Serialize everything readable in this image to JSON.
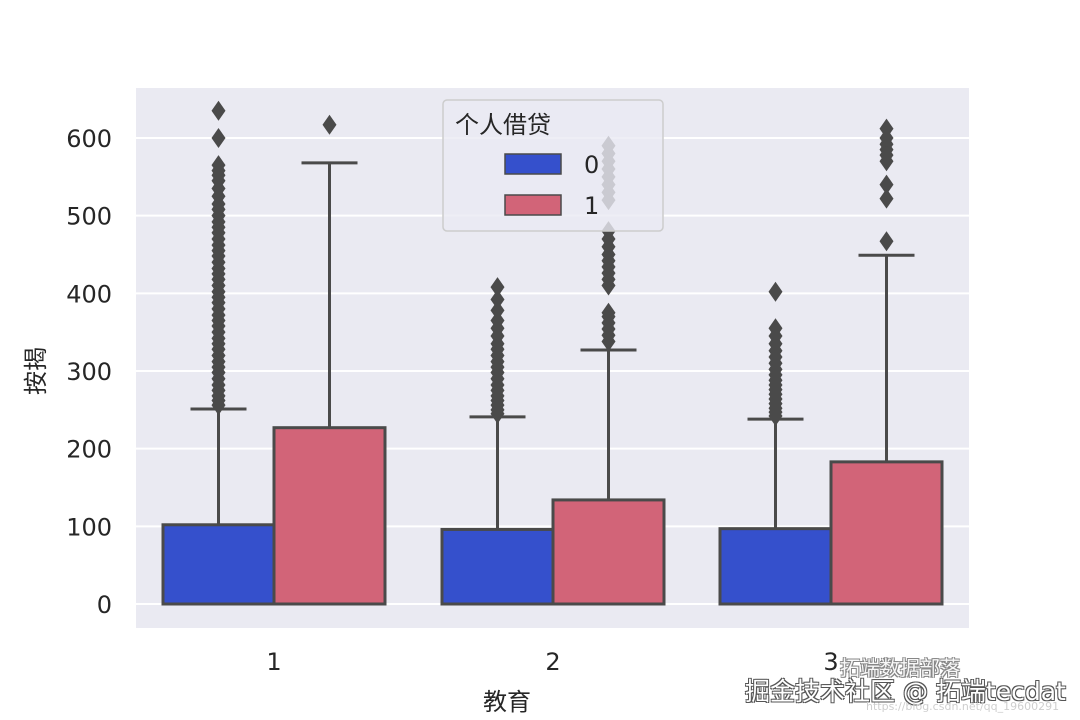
{
  "chart_data": {
    "type": "box",
    "title": "",
    "xlabel": "教育",
    "ylabel": "按揭",
    "categories": [
      "1",
      "2",
      "3"
    ],
    "hue_title": "个人借贷",
    "ylim": [
      -30,
      665
    ],
    "yticks": [
      0,
      100,
      200,
      300,
      400,
      500,
      600
    ],
    "grid": true,
    "legend_position": "upper center",
    "series": [
      {
        "name": "0",
        "color": "#3550cc",
        "boxes": [
          {
            "category": "1",
            "q1": 0,
            "median": 0,
            "q3": 102,
            "whisker_low": 0,
            "whisker_high": 251,
            "outliers": [
              256,
              262,
              268,
              275,
              282,
              290,
              298,
              305,
              312,
              320,
              328,
              335,
              342,
              350,
              358,
              365,
              372,
              380,
              388,
              395,
              402,
              410,
              418,
              425,
              432,
              440,
              448,
              455,
              462,
              470,
              478,
              485,
              492,
              500,
              508,
              515,
              525,
              535,
              545,
              552,
              558,
              565,
              600,
              635
            ]
          },
          {
            "category": "2",
            "q1": 0,
            "median": 0,
            "q3": 96,
            "whisker_low": 0,
            "whisker_high": 241,
            "outliers": [
              245,
              250,
              256,
              262,
              268,
              275,
              282,
              290,
              298,
              305,
              312,
              320,
              328,
              335,
              345,
              355,
              365,
              378,
              392,
              408
            ]
          },
          {
            "category": "3",
            "q1": 0,
            "median": 0,
            "q3": 97,
            "whisker_low": 0,
            "whisker_high": 238,
            "outliers": [
              242,
              247,
              252,
              258,
              264,
              270,
              276,
              282,
              288,
              295,
              302,
              310,
              318,
              326,
              335,
              345,
              355,
              402
            ]
          }
        ]
      },
      {
        "name": "1",
        "color": "#d26478",
        "boxes": [
          {
            "category": "1",
            "q1": 0,
            "median": 0,
            "q3": 227,
            "whisker_low": 0,
            "whisker_high": 568,
            "outliers": [
              617
            ]
          },
          {
            "category": "2",
            "q1": 0,
            "median": 0,
            "q3": 134,
            "whisker_low": 0,
            "whisker_high": 327,
            "outliers": [
              338,
              346,
              354,
              362,
              370,
              375,
              410,
              418,
              426,
              434,
              442,
              450,
              460,
              470,
              480,
              520,
              530,
              540,
              550,
              560,
              570,
              580,
              590
            ]
          },
          {
            "category": "3",
            "q1": 0,
            "median": 0,
            "q3": 183,
            "whisker_low": 0,
            "whisker_high": 449,
            "outliers": [
              467,
              522,
              540,
              570,
              578,
              585,
              592,
              600,
              612
            ]
          }
        ]
      }
    ]
  },
  "style": {
    "plot_bg": "#eaeaf2",
    "grid_color": "#ffffff",
    "line_color": "#4a4a4a",
    "text_color": "#262626"
  },
  "labels": {
    "xlabel": "教育",
    "ylabel": "按揭",
    "legend_title": "个人借贷",
    "legend_items": [
      "0",
      "1"
    ],
    "xticks": [
      "1",
      "2",
      "3"
    ],
    "yticks": [
      "0",
      "100",
      "200",
      "300",
      "400",
      "500",
      "600"
    ]
  },
  "watermark": {
    "main": "掘金技术社区 @ 拓端tecdat",
    "secondary": "拓端数据部落",
    "url": "https://blog.csdn.net/qq_19600291"
  }
}
